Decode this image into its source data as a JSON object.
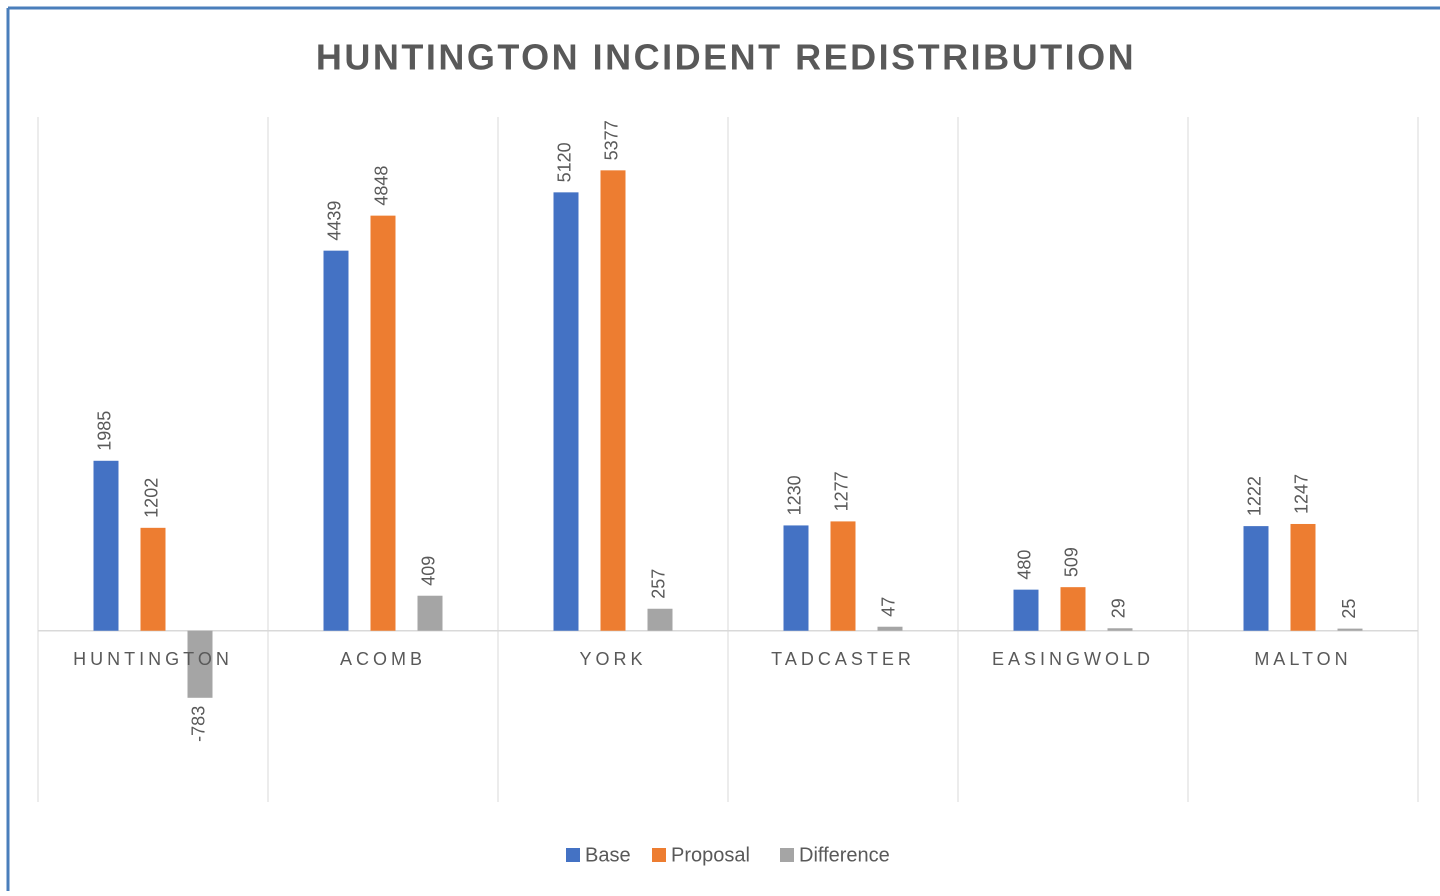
{
  "chart_data": {
    "type": "bar",
    "title": "HUNTINGTON INCIDENT REDISTRIBUTION",
    "categories": [
      "HUNTINGTON",
      "ACOMB",
      "YORK",
      "TADCASTER",
      "EASINGWOLD",
      "MALTON"
    ],
    "series": [
      {
        "name": "Base",
        "color": "#4472c4",
        "values": [
          1985,
          4439,
          5120,
          1230,
          480,
          1222
        ]
      },
      {
        "name": "Proposal",
        "color": "#ed7d31",
        "values": [
          1202,
          4848,
          5377,
          1277,
          509,
          1247
        ]
      },
      {
        "name": "Difference",
        "color": "#a5a5a5",
        "values": [
          -783,
          409,
          257,
          47,
          29,
          25
        ]
      }
    ],
    "ylim": [
      -2000,
      6000
    ],
    "legend": "bottom"
  }
}
